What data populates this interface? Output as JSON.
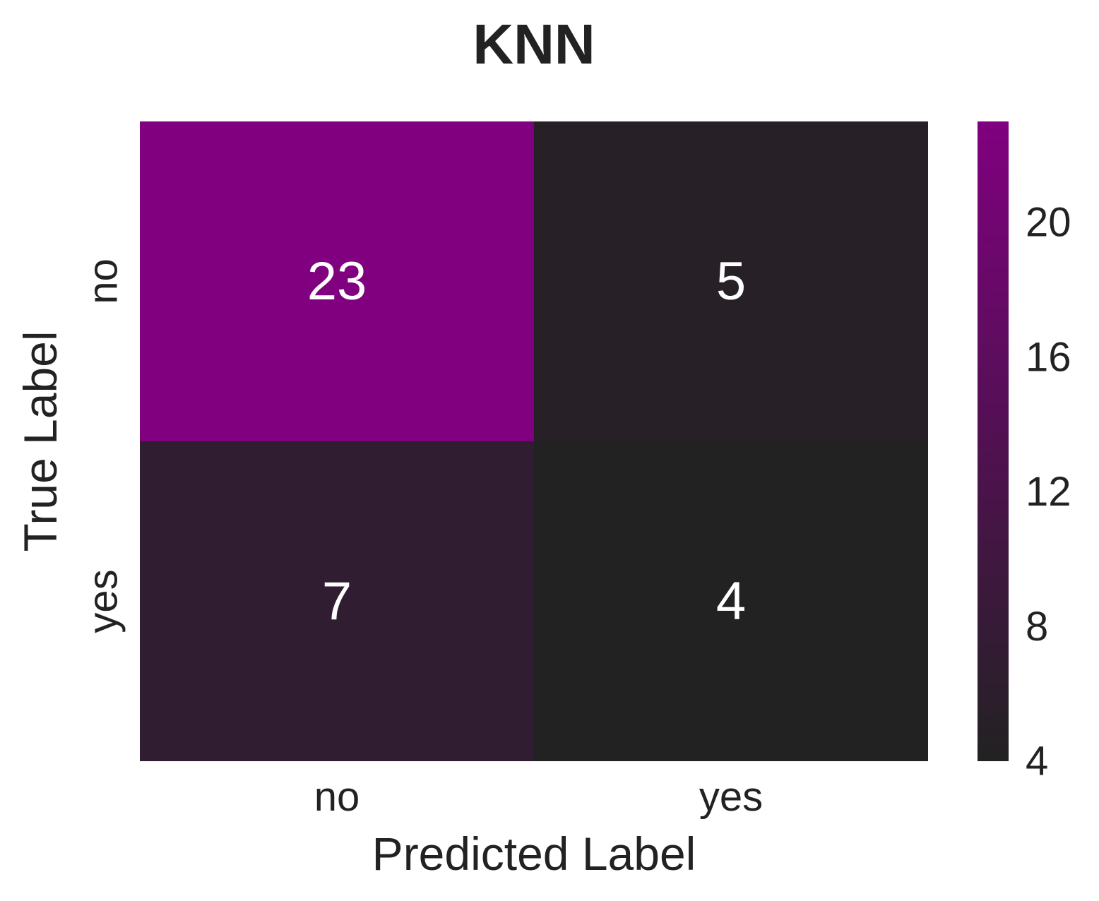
{
  "chart_data": {
    "type": "heatmap",
    "title": "KNN",
    "xlabel": "Predicted Label",
    "ylabel": "True Label",
    "x_categories": [
      "no",
      "yes"
    ],
    "y_categories": [
      "no",
      "yes"
    ],
    "matrix": [
      [
        23,
        5
      ],
      [
        7,
        4
      ]
    ],
    "colorbar": {
      "min": 4,
      "max": 23,
      "ticks": [
        4,
        8,
        12,
        16,
        20
      ],
      "tick_labels": [
        "4",
        "8",
        "12",
        "16",
        "20"
      ]
    },
    "colors": {
      "low": "#222222",
      "high": "#800080",
      "annotation": "#ffffff"
    },
    "grid": false
  }
}
